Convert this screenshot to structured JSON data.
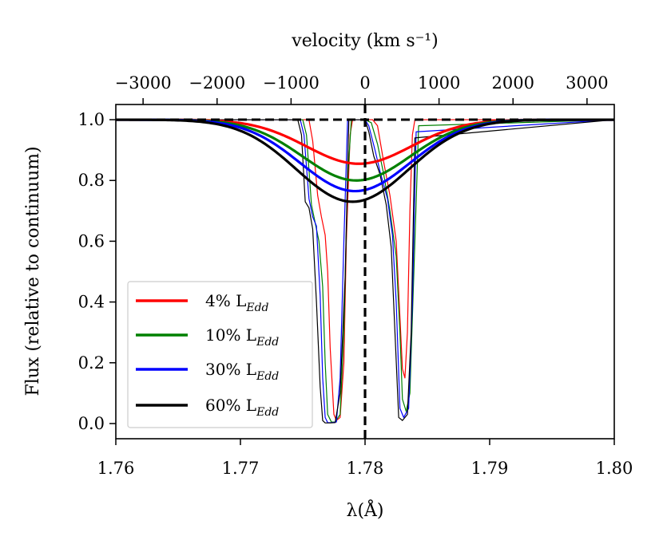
{
  "chart_data": {
    "type": "line",
    "xlabel": "λ(Å)",
    "ylabel": "Flux (relative to continuum)",
    "top_xlabel": "velocity (km s⁻¹)",
    "xlim": [
      1.76,
      1.8
    ],
    "ylim": [
      -0.05,
      1.05
    ],
    "x_ticks": [
      1.76,
      1.77,
      1.78,
      1.79,
      1.8
    ],
    "x_tick_labels": [
      "1.76",
      "1.77",
      "1.78",
      "1.79",
      "1.80"
    ],
    "y_ticks": [
      0.0,
      0.2,
      0.4,
      0.6,
      0.8,
      1.0
    ],
    "y_tick_labels": [
      "0.0",
      "0.2",
      "0.4",
      "0.6",
      "0.8",
      "1.0"
    ],
    "top_ticks": [
      -3000,
      -2000,
      -1000,
      0,
      1000,
      2000,
      3000
    ],
    "top_tick_labels": [
      "−3000",
      "−2000",
      "−1000",
      "0",
      "1000",
      "2000",
      "3000"
    ],
    "vertical_line_x": 1.78,
    "horizontal_line_y": 1.0,
    "legend_placement": "lower-left",
    "grid": false,
    "broad_profiles": [
      {
        "name": "4% L_Edd",
        "color": "#ff0000",
        "depth": 0.145,
        "center": 1.7795,
        "sigma": 0.0042
      },
      {
        "name": "10% L_Edd",
        "color": "#008000",
        "depth": 0.2,
        "center": 1.7793,
        "sigma": 0.0043
      },
      {
        "name": "30% L_Edd",
        "color": "#0000ff",
        "depth": 0.235,
        "center": 1.7792,
        "sigma": 0.0044
      },
      {
        "name": "60% L_Edd",
        "color": "#000000",
        "depth": 0.27,
        "center": 1.779,
        "sigma": 0.0045
      }
    ],
    "narrow_lines": [
      {
        "color": "#ff0000",
        "x": [
          1.76,
          1.7755,
          1.7758,
          1.7762,
          1.7765,
          1.7768,
          1.777,
          1.7772,
          1.7775,
          1.7777,
          1.778,
          1.7783,
          1.7785,
          1.7788,
          1.779,
          1.7795,
          1.78,
          1.7806,
          1.781,
          1.7815,
          1.782,
          1.7825,
          1.7828,
          1.783,
          1.7832,
          1.7834,
          1.7836,
          1.7838,
          1.784,
          1.8
        ],
        "y": [
          1.0,
          1.0,
          0.93,
          0.75,
          0.68,
          0.62,
          0.5,
          0.25,
          0.03,
          0.01,
          0.02,
          0.2,
          0.6,
          0.95,
          1.0,
          1.0,
          1.0,
          1.0,
          0.98,
          0.86,
          0.75,
          0.6,
          0.35,
          0.18,
          0.15,
          0.3,
          0.7,
          0.95,
          1.0,
          1.0
        ]
      },
      {
        "color": "#008000",
        "x": [
          1.76,
          1.775,
          1.7753,
          1.7757,
          1.776,
          1.7763,
          1.7766,
          1.7768,
          1.777,
          1.7773,
          1.7776,
          1.778,
          1.7783,
          1.7786,
          1.7789,
          1.78,
          1.7805,
          1.781,
          1.7815,
          1.782,
          1.7825,
          1.7828,
          1.783,
          1.7833,
          1.7836,
          1.784,
          1.7843,
          1.8
        ],
        "y": [
          1.0,
          1.0,
          0.95,
          0.72,
          0.66,
          0.6,
          0.45,
          0.2,
          0.03,
          0.005,
          0.005,
          0.03,
          0.3,
          0.8,
          1.0,
          1.0,
          0.99,
          0.92,
          0.82,
          0.7,
          0.55,
          0.3,
          0.08,
          0.04,
          0.1,
          0.6,
          0.98,
          1.0
        ]
      },
      {
        "color": "#0000ff",
        "x": [
          1.76,
          1.7748,
          1.7751,
          1.7755,
          1.7758,
          1.7761,
          1.7764,
          1.7766,
          1.7768,
          1.777,
          1.7773,
          1.7777,
          1.778,
          1.7783,
          1.7786,
          1.78,
          1.7803,
          1.7808,
          1.7812,
          1.7818,
          1.7822,
          1.7825,
          1.7828,
          1.7831,
          1.7835,
          1.7838,
          1.7841,
          1.8
        ],
        "y": [
          1.0,
          1.0,
          0.95,
          0.74,
          0.68,
          0.65,
          0.42,
          0.15,
          0.02,
          0.003,
          0.003,
          0.005,
          0.15,
          0.6,
          1.0,
          1.0,
          0.98,
          0.9,
          0.83,
          0.74,
          0.62,
          0.4,
          0.05,
          0.02,
          0.05,
          0.4,
          0.96,
          1.0
        ]
      },
      {
        "color": "#000000",
        "x": [
          1.76,
          1.7746,
          1.7749,
          1.7752,
          1.7755,
          1.7758,
          1.7761,
          1.7764,
          1.7766,
          1.7768,
          1.7772,
          1.7776,
          1.778,
          1.7784,
          1.7787,
          1.78,
          1.7803,
          1.7807,
          1.7812,
          1.7817,
          1.7821,
          1.7824,
          1.7827,
          1.783,
          1.7834,
          1.7837,
          1.784,
          1.8
        ],
        "y": [
          1.0,
          1.0,
          0.95,
          0.73,
          0.71,
          0.64,
          0.4,
          0.12,
          0.01,
          0.002,
          0.002,
          0.003,
          0.1,
          0.48,
          1.0,
          1.0,
          0.96,
          0.88,
          0.82,
          0.72,
          0.58,
          0.3,
          0.02,
          0.01,
          0.03,
          0.3,
          0.94,
          1.0
        ]
      }
    ]
  },
  "legend": {
    "items": [
      {
        "label": "4% L",
        "sub": "Edd",
        "color": "#ff0000"
      },
      {
        "label": "10% L",
        "sub": "Edd",
        "color": "#008000"
      },
      {
        "label": "30% L",
        "sub": "Edd",
        "color": "#0000ff"
      },
      {
        "label": "60% L",
        "sub": "Edd",
        "color": "#000000"
      }
    ]
  }
}
